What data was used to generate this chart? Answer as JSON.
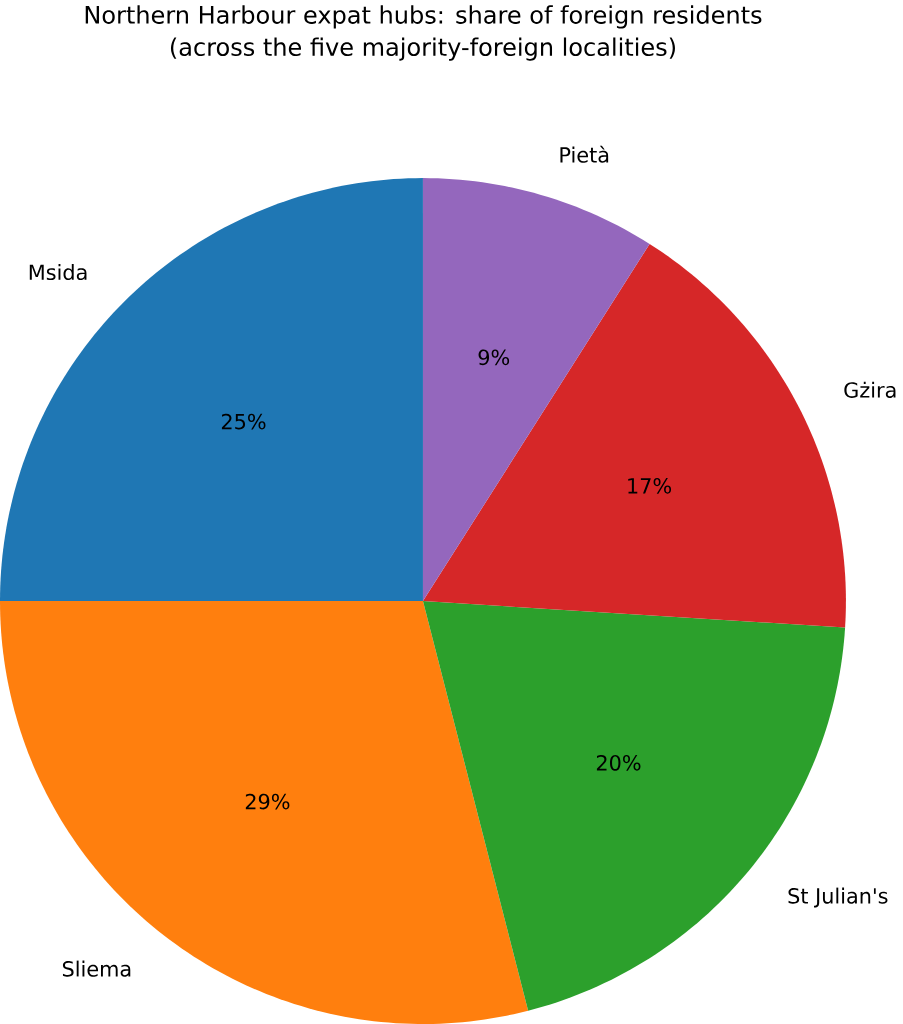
{
  "chart_data": {
    "type": "pie",
    "title": "Northern Harbour expat hubs: share of foreign residents",
    "subtitle": "(across the five majority-foreign localities)",
    "categories": [
      "Msida",
      "Sliema",
      "St Julian's",
      "Gżira",
      "Pietà"
    ],
    "values": [
      25,
      29,
      20,
      17,
      9
    ],
    "value_labels": [
      "25%",
      "29%",
      "20%",
      "17%",
      "9%"
    ],
    "colors": [
      "#1f77b4",
      "#ff7f0e",
      "#2ca02c",
      "#d62728",
      "#9467bd"
    ]
  }
}
